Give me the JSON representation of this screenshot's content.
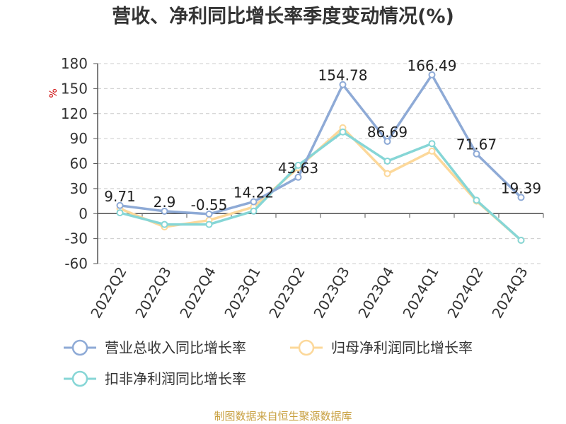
{
  "chart_data": {
    "type": "line",
    "title": "营收、净利同比增长率季度变动情况(%)",
    "ylabel": "%",
    "source": "制图数据来自恒生聚源数据库",
    "categories": [
      "2022Q2",
      "2022Q3",
      "2022Q4",
      "2023Q1",
      "2023Q2",
      "2023Q3",
      "2023Q4",
      "2024Q1",
      "2024Q2",
      "2024Q3"
    ],
    "ylim": [
      -60,
      180
    ],
    "yticks": [
      -60,
      -30,
      0,
      30,
      60,
      90,
      120,
      150,
      180
    ],
    "grid": true,
    "legend_position": "bottom",
    "series": [
      {
        "name": "营业总收入同比增长率",
        "color": "#8eaad6",
        "values": [
          9.71,
          2.9,
          -0.55,
          14.22,
          43.63,
          154.78,
          86.69,
          166.49,
          71.67,
          19.39
        ],
        "labels": [
          "9.71",
          "2.9",
          "-0.55",
          "14.22",
          "43.63",
          "154.78",
          "86.69",
          "166.49",
          "71.67",
          "19.39"
        ]
      },
      {
        "name": "归母净利润同比增长率",
        "color": "#fcd89a",
        "values": [
          6,
          -16,
          -8,
          8,
          55,
          103,
          48,
          75,
          15,
          -32
        ]
      },
      {
        "name": "扣非净利润同比增长率",
        "color": "#86d6d6",
        "values": [
          1,
          -13,
          -13,
          3,
          58,
          98,
          63,
          84,
          16,
          -32
        ]
      }
    ]
  }
}
